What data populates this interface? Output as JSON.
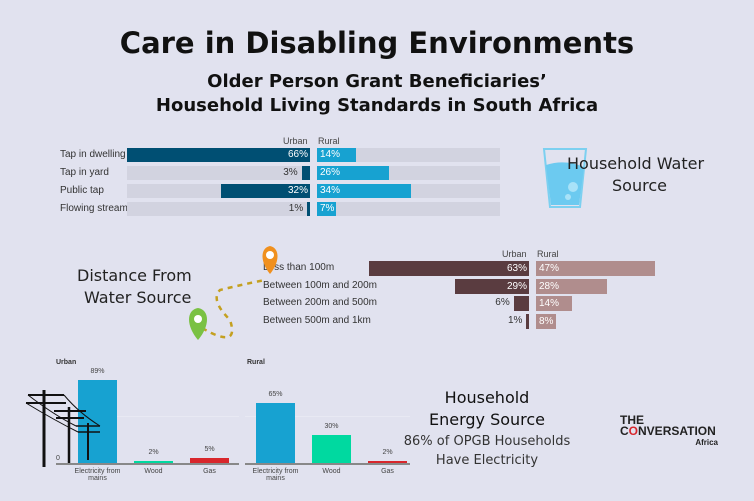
{
  "header": {
    "title": "Care in Disabling Environments",
    "subtitle_line1": "Older Person Grant Beneficiaries’",
    "subtitle_line2": "Household Living Standards in South Africa"
  },
  "water": {
    "caption_line1": "Household Water",
    "caption_line2": "Source"
  },
  "distance": {
    "caption_line1": "Distance From",
    "caption_line2": "Water Source"
  },
  "energy": {
    "caption_line1": "Household",
    "caption_line2": "Energy Source",
    "note_line1": "86% of OPGB Households",
    "note_line2": "Have Electricity"
  },
  "logo": {
    "text": "THE CONVERSATION Africa"
  },
  "chart_data": [
    {
      "type": "bar",
      "orientation": "horizontal",
      "categories": [
        "Tap in dwelling",
        "Tap in yard",
        "Public tap",
        "Flowing stream"
      ],
      "series": [
        {
          "name": "Urban",
          "values": [
            66,
            3,
            32,
            1
          ],
          "color": "#004f73"
        },
        {
          "name": "Rural",
          "values": [
            14,
            26,
            34,
            7
          ],
          "color": "#17a2d1"
        }
      ],
      "labels": {
        "Urban": [
          "66%",
          "3%",
          "32%",
          "1%"
        ],
        "Rural": [
          "14%",
          "26%",
          "34%",
          "7%"
        ]
      }
    },
    {
      "type": "bar",
      "orientation": "horizontal",
      "categories": [
        "Less than 100m",
        "Between 100m and 200m",
        "Between 200m and 500m",
        "Between 500m and 1km"
      ],
      "series": [
        {
          "name": "Urban",
          "values": [
            63,
            29,
            6,
            1
          ],
          "color": "#5a3c40"
        },
        {
          "name": "Rural",
          "values": [
            47,
            28,
            14,
            8
          ],
          "color": "#b08d8d"
        }
      ],
      "labels": {
        "Urban": [
          "63%",
          "29%",
          "6%",
          "1%"
        ],
        "Rural": [
          "47%",
          "28%",
          "14%",
          "8%"
        ]
      }
    },
    {
      "type": "bar",
      "title": "Urban",
      "categories": [
        "Electricity from mains",
        "Wood",
        "Gas"
      ],
      "values": [
        89,
        2,
        5
      ],
      "labels": [
        "89%",
        "2%",
        "5%"
      ],
      "axis_zero": "0",
      "colors": [
        "#17a2d1",
        "#00d9a0",
        "#d8262c"
      ]
    },
    {
      "type": "bar",
      "title": "Rural",
      "categories": [
        "Electricity from mains",
        "Wood",
        "Gas"
      ],
      "values": [
        65,
        30,
        2
      ],
      "labels": [
        "65%",
        "30%",
        "2%"
      ],
      "colors": [
        "#17a2d1",
        "#00d9a0",
        "#d8262c"
      ]
    }
  ]
}
